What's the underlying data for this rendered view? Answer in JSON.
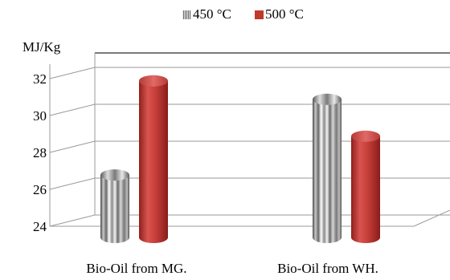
{
  "chart_data": {
    "type": "bar",
    "title": "",
    "ylabel": "MJ/Kg",
    "xlabel": "",
    "categories": [
      "Bio-Oil from MG.",
      "Bio-Oil from WH."
    ],
    "series": [
      {
        "name": "450 °C",
        "values": [
          27.3,
          31.4
        ],
        "color": "#b0b0b0",
        "style": "striped-grey-cylinder"
      },
      {
        "name": "500 °C",
        "values": [
          32.4,
          29.4
        ],
        "color": "#c0392b",
        "style": "red-cylinder"
      }
    ],
    "ylim": [
      24,
      32
    ],
    "yticks": [
      "24",
      "26",
      "28",
      "30",
      "32"
    ],
    "grid": true,
    "legend_position": "top",
    "bar_shape": "3d-cylinder"
  }
}
